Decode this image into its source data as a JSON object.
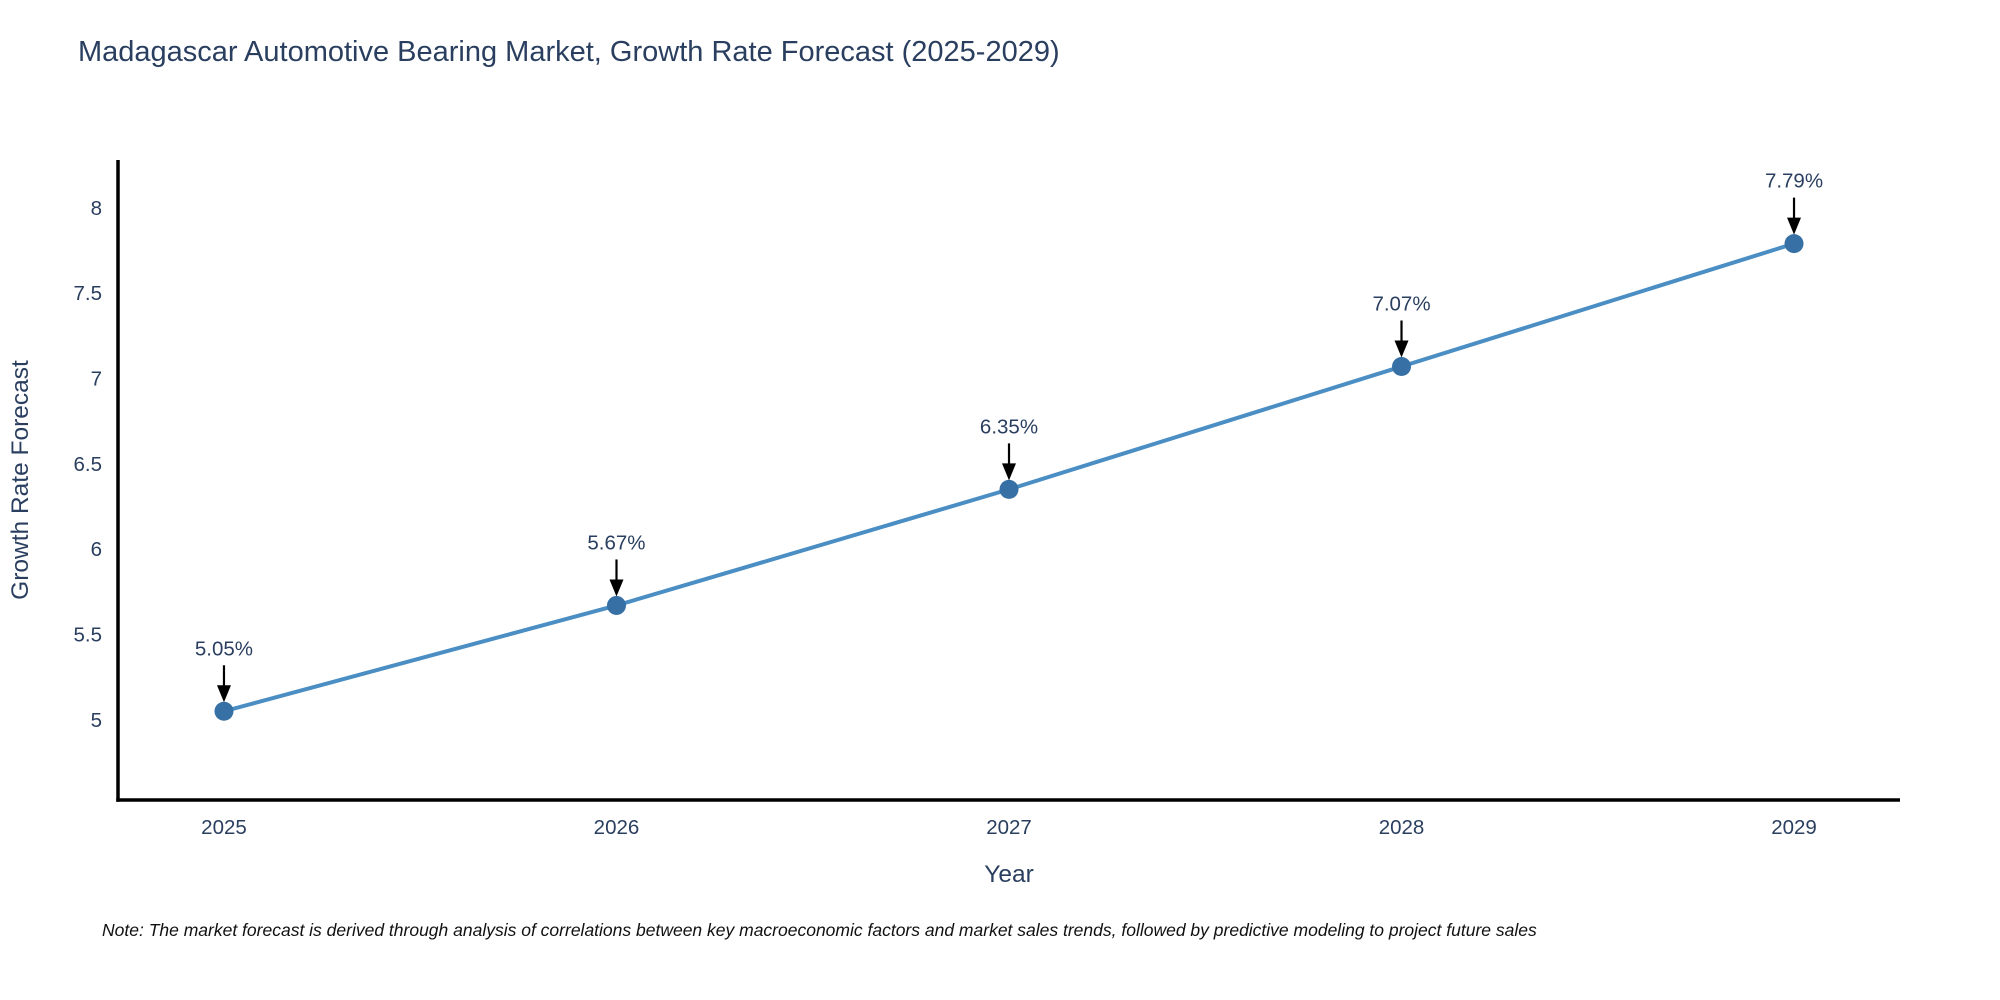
{
  "title": "Madagascar Automotive Bearing Market, Growth Rate Forecast (2025-2029)",
  "note": "Note: The market forecast is derived through analysis of correlations between key macroeconomic factors and market sales trends, followed by predictive modeling to project future sales",
  "chart_data": {
    "type": "line",
    "title": "Madagascar Automotive Bearing Market, Growth Rate Forecast (2025-2029)",
    "x": [
      2025,
      2026,
      2027,
      2028,
      2029
    ],
    "y": [
      5.05,
      5.67,
      6.35,
      7.07,
      7.79
    ],
    "point_labels": [
      "5.05%",
      "5.67%",
      "6.35%",
      "7.07%",
      "7.79%"
    ],
    "xlabel": "Year",
    "ylabel": "Growth Rate Forecast",
    "x_tick_labels": [
      "2025",
      "2026",
      "2027",
      "2028",
      "2029"
    ],
    "y_ticks": [
      5,
      5.5,
      6,
      6.5,
      7,
      7.5,
      8
    ],
    "y_tick_labels": [
      "5",
      "5.5",
      "6",
      "6.5",
      "7",
      "7.5",
      "8"
    ],
    "xlim": [
      2024.73,
      2029.27
    ],
    "ylim": [
      4.53,
      8.28
    ],
    "grid": false,
    "legend": "none",
    "marker_style": "circle-with-down-arrow-annotation",
    "colors": {
      "line": "#4a8ec4",
      "marker": "#3670a5",
      "axis": "#000000",
      "text": "#2a3f5f",
      "annotation_text": "#2a3f5f",
      "annotation_arrow": "#000000",
      "note_text": "#111111",
      "background": "#ffffff"
    }
  }
}
